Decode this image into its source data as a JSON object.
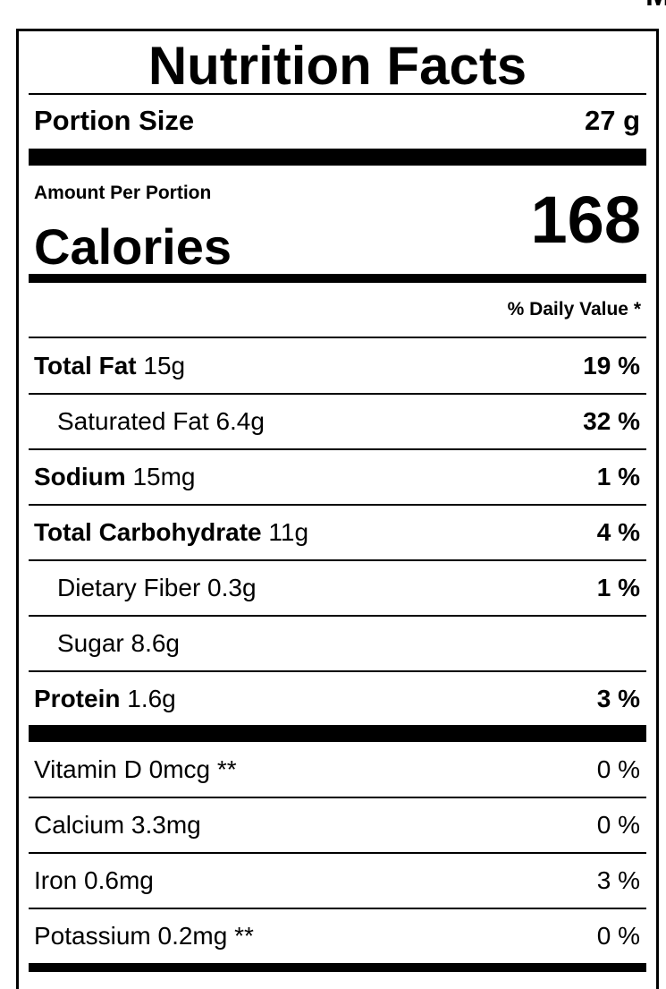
{
  "corner_text": "M",
  "label": {
    "title": "Nutrition Facts",
    "portion_label": "Portion Size",
    "portion_value": "27 g",
    "amount_label": "Amount Per Portion",
    "calories_label": "Calories",
    "calories_value": "168",
    "daily_value_header": "% Daily Value *",
    "nutrients": [
      {
        "name": "Total Fat",
        "amount": "15g",
        "dv": "19 %",
        "bold": true,
        "indent": false
      },
      {
        "name": "Saturated Fat",
        "amount": "6.4g",
        "dv": "32 %",
        "bold": false,
        "indent": true
      },
      {
        "name": "Sodium",
        "amount": "15mg",
        "dv": "1 %",
        "bold": true,
        "indent": false
      },
      {
        "name": "Total Carbohydrate",
        "amount": "11g",
        "dv": "4 %",
        "bold": true,
        "indent": false
      },
      {
        "name": "Dietary Fiber",
        "amount": "0.3g",
        "dv": "1 %",
        "bold": false,
        "indent": true
      },
      {
        "name": "Sugar",
        "amount": "8.6g",
        "bold": false,
        "indent": true
      },
      {
        "name": "Protein",
        "amount": "1.6g",
        "dv": "3 %",
        "bold": true,
        "indent": false
      }
    ],
    "vitamins": [
      {
        "name": "Vitamin D",
        "amount": "0mcg **",
        "dv": "0 %"
      },
      {
        "name": "Calcium",
        "amount": "3.3mg",
        "dv": "0 %"
      },
      {
        "name": "Iron",
        "amount": "0.6mg",
        "dv": "3 %"
      },
      {
        "name": "Potassium",
        "amount": "0.2mg **",
        "dv": "0 %"
      }
    ]
  }
}
